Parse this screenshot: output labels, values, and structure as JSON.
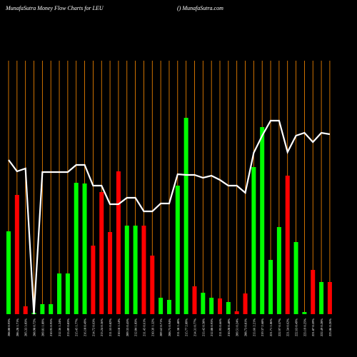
{
  "chart_data": {
    "type": "bar",
    "title": "MunafaSutra  Money Flow  Charts for LEU",
    "subtitle": "() MunafaSutra.com",
    "categories": [
      "208.00 0.93%",
      "206.28 1.71%",
      "205.33 3.03%",
      "208.98 0.72%",
      "209.01 1.09%",
      "210.95 0.95%",
      "212.36 1.24%",
      "213.09 0.83%",
      "215.45 1.77%",
      "216.10 0.49%",
      "214.72 0.63%",
      "213.24 0.36%",
      "211.55 0.82%",
      "210.18 1.14%",
      "209.33 0.45%",
      "212.04 1.03%",
      "211.45 0.61%",
      "210.39 1.32%",
      "209.62 0.71%",
      "208.75 0.94%",
      "211.38 1.48%",
      "215.77 2.09%",
      "214.31 0.77%",
      "213.42 0.58%",
      "212.88 0.93%",
      "211.93 0.66%",
      "210.28 0.40%",
      "209.51 0.24%",
      "208.73 0.81%",
      "213.66 2.21%",
      "219.37 2.68%",
      "221.71 1.06%",
      "222.97 0.57%",
      "221.54 0.62%",
      "222.63 0.49%",
      "223.19 0.25%",
      "221.87 0.59%",
      "222.49 0.28%",
      "223.06 0.26%"
    ],
    "values": [
      116,
      167,
      11,
      2,
      14,
      14,
      57,
      57,
      184,
      183,
      96,
      171,
      115,
      200,
      124,
      124,
      124,
      82,
      23,
      20,
      180,
      275,
      39,
      30,
      23,
      22,
      17,
      4,
      29,
      206,
      262,
      76,
      122,
      194,
      101,
      3,
      62,
      45,
      45
    ],
    "colors": [
      "#00ff00",
      "#ff0000",
      "#ff0000",
      "#00ff00",
      "#00ff00",
      "#00ff00",
      "#00ff00",
      "#00ff00",
      "#00ff00",
      "#00ff00",
      "#ff0000",
      "#ff0000",
      "#ff0000",
      "#ff0000",
      "#00ff00",
      "#00ff00",
      "#ff0000",
      "#ff0000",
      "#00ff00",
      "#00ff00",
      "#00ff00",
      "#00ff00",
      "#ff0000",
      "#00ff00",
      "#00ff00",
      "#ff0000",
      "#00ff00",
      "#ff0000",
      "#ff0000",
      "#00ff00",
      "#00ff00",
      "#00ff00",
      "#00ff00",
      "#ff0000",
      "#00ff00",
      "#00ff00",
      "#ff0000",
      "#00ff00",
      "#ff0000"
    ],
    "line": {
      "color": "#ffffff",
      "values": [
        216,
        200,
        204,
        0,
        199,
        199,
        199,
        199,
        209,
        209,
        180,
        180,
        154,
        154,
        163,
        163,
        144,
        144,
        155,
        155,
        196,
        195,
        195,
        191,
        194,
        188,
        180,
        180,
        170,
        226,
        250,
        271,
        271,
        227,
        250,
        254,
        241,
        254,
        252
      ]
    },
    "ylim": [
      0,
      355
    ],
    "grid": true,
    "grid_color": "#ff8c00",
    "background": "#000000"
  }
}
